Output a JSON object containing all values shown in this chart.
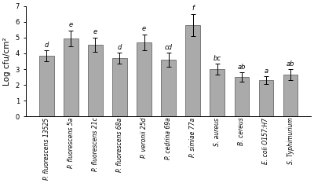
{
  "categories": [
    "P. fluorescens 13525",
    "P. fluorescens 5a",
    "P. fluorescens 21c",
    "P. fluorescens 68a",
    "P. veronii 25d",
    "P. cedrina 69a",
    "P. simiae 77a",
    "S. aureus",
    "B. cereus",
    "E. coli O157:H7",
    "S. Typhimurium"
  ],
  "values": [
    3.85,
    4.95,
    4.55,
    3.7,
    4.7,
    3.6,
    5.8,
    3.0,
    2.5,
    2.3,
    2.65
  ],
  "errors": [
    0.35,
    0.5,
    0.45,
    0.35,
    0.5,
    0.45,
    0.7,
    0.35,
    0.3,
    0.25,
    0.35
  ],
  "letters": [
    "d",
    "e",
    "e",
    "d",
    "e",
    "cd",
    "f",
    "bc",
    "ab",
    "a",
    "ab"
  ],
  "bar_color": "#aaaaaa",
  "bar_edge_color": "#555555",
  "ylabel": "Log cfu/cm²",
  "ylim": [
    0,
    7
  ],
  "yticks": [
    0,
    1,
    2,
    3,
    4,
    5,
    6,
    7
  ],
  "letter_fontsize": 6.0,
  "ylabel_fontsize": 7.5,
  "tick_fontsize": 6.0,
  "xlabel_fontsize": 5.5
}
